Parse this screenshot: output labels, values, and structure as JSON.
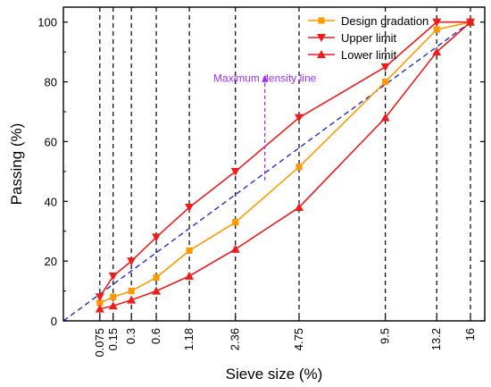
{
  "chart_data": {
    "type": "line",
    "xlabel": "Sieve size (%)",
    "ylabel": "Passing (%)",
    "ylim": [
      0,
      105
    ],
    "y_ticks": [
      0,
      20,
      40,
      60,
      80,
      100
    ],
    "x_scale": "power-0.45",
    "x_ticks": [
      "0.075",
      "0.15",
      "0.3",
      "0.6",
      "1.18",
      "2.36",
      "4.75",
      "9.5",
      "13.2",
      "16"
    ],
    "x": [
      0.075,
      0.15,
      0.3,
      0.6,
      1.18,
      2.36,
      4.75,
      9.5,
      13.2,
      16
    ],
    "grid": "dashed vertical lines at each sieve size",
    "series": [
      {
        "name": "Design gradation",
        "color": "#ff9900",
        "marker": "square",
        "values": [
          6,
          8,
          10,
          14.5,
          23.5,
          33,
          51.5,
          80,
          97.5,
          100
        ]
      },
      {
        "name": "Upper limit",
        "color": "#ee1c1c",
        "marker": "triangle-down",
        "values": [
          8,
          15,
          20,
          28,
          38,
          50,
          68,
          85,
          100,
          100
        ]
      },
      {
        "name": "Lower limit",
        "color": "#ee1c1c",
        "marker": "triangle-up",
        "values": [
          4,
          5,
          7,
          10,
          15,
          24,
          38,
          68,
          90,
          100
        ]
      }
    ],
    "max_density_line": {
      "color": "#2030d0",
      "from": [
        0,
        0
      ],
      "to": [
        16,
        100
      ]
    },
    "annotation": {
      "text": "Maximum density line",
      "color": "#9b30ff",
      "x": 3.35,
      "y": 80,
      "arrow_from_y": 47,
      "arrow_to_y": 82
    },
    "legend_position": "top-right"
  }
}
